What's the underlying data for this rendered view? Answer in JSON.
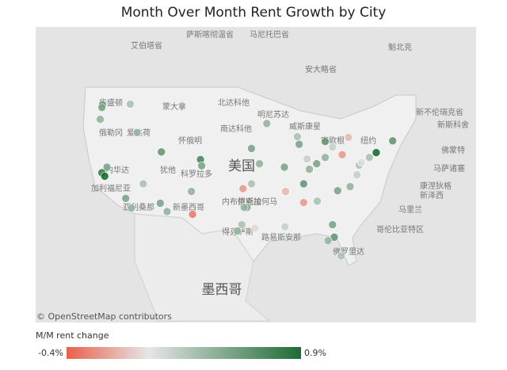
{
  "chart_data": {
    "type": "bubble-map",
    "title": "Month Over Month Rent Growth by City",
    "attribution": "© OpenStreetMap contributors",
    "legend_title": "M/M rent change",
    "colorlim": [
      {
        "value": -0.4,
        "label": "-0.4%"
      },
      {
        "value": 0.9,
        "label": "0.9%"
      }
    ],
    "colors": [
      "#e8604b",
      "#e6e6e6",
      "#1e6b35"
    ],
    "places": [
      "艾伯塔省",
      "萨斯喀彻温省",
      "马尼托巴省",
      "安大略省",
      "魁北克",
      "新不伦瑞克省",
      "新斯科舍",
      "华盛顿",
      "蒙大拿",
      "北达科他",
      "明尼苏达",
      "俄勒冈",
      "爱达荷",
      "怀俄明",
      "南达科他",
      "威斯康星",
      "密歇根",
      "纽约",
      "内华达",
      "犹他",
      "科罗拉多",
      "内布拉斯加",
      "美国",
      "加利福尼亚",
      "亚利桑那",
      "新墨西哥",
      "俄克拉何马",
      "得克萨斯",
      "路易斯安那",
      "佛罗里达",
      "佛蒙特",
      "马萨诸塞",
      "康涅狄格",
      "新泽西",
      "马里兰",
      "哥伦比亚特区",
      "墨西哥"
    ],
    "points": [
      {
        "lon": -122.3,
        "lat": 47.6,
        "value": 0.6
      },
      {
        "lon": -122.4,
        "lat": 47.2,
        "value": 0.5
      },
      {
        "lon": -122.7,
        "lat": 45.5,
        "value": 0.4
      },
      {
        "lon": -117.4,
        "lat": 47.7,
        "value": 0.3
      },
      {
        "lon": -116.2,
        "lat": 43.6,
        "value": 0.4
      },
      {
        "lon": -121.5,
        "lat": 38.6,
        "value": 0.5
      },
      {
        "lon": -122.4,
        "lat": 37.8,
        "value": 0.8
      },
      {
        "lon": -121.9,
        "lat": 37.3,
        "value": 0.9
      },
      {
        "lon": -118.2,
        "lat": 34.1,
        "value": 0.5
      },
      {
        "lon": -117.2,
        "lat": 32.7,
        "value": 0.4
      },
      {
        "lon": -115.1,
        "lat": 36.2,
        "value": 0.3
      },
      {
        "lon": -112.1,
        "lat": 33.4,
        "value": 0.5
      },
      {
        "lon": -110.9,
        "lat": 32.2,
        "value": 0.4
      },
      {
        "lon": -111.9,
        "lat": 40.8,
        "value": 0.6
      },
      {
        "lon": -105.0,
        "lat": 39.7,
        "value": 0.7
      },
      {
        "lon": -104.8,
        "lat": 38.8,
        "value": 0.5
      },
      {
        "lon": -106.6,
        "lat": 35.1,
        "value": 0.4
      },
      {
        "lon": -106.4,
        "lat": 31.8,
        "value": -0.3
      },
      {
        "lon": -96.8,
        "lat": 32.8,
        "value": 0.5
      },
      {
        "lon": -97.3,
        "lat": 32.8,
        "value": 0.4
      },
      {
        "lon": -97.7,
        "lat": 30.3,
        "value": 0.3
      },
      {
        "lon": -98.5,
        "lat": 29.4,
        "value": 0.4
      },
      {
        "lon": -95.4,
        "lat": 29.8,
        "value": 0.0
      },
      {
        "lon": -97.5,
        "lat": 35.5,
        "value": -0.2
      },
      {
        "lon": -96.0,
        "lat": 36.2,
        "value": 0.3
      },
      {
        "lon": -94.6,
        "lat": 39.1,
        "value": 0.4
      },
      {
        "lon": -96.0,
        "lat": 41.3,
        "value": 0.5
      },
      {
        "lon": -93.3,
        "lat": 44.9,
        "value": 0.4
      },
      {
        "lon": -87.6,
        "lat": 41.9,
        "value": 0.5
      },
      {
        "lon": -87.9,
        "lat": 43.0,
        "value": 0.3
      },
      {
        "lon": -83.0,
        "lat": 42.3,
        "value": 0.6
      },
      {
        "lon": -83.0,
        "lat": 40.0,
        "value": 0.4
      },
      {
        "lon": -86.2,
        "lat": 39.8,
        "value": 0.2
      },
      {
        "lon": -90.2,
        "lat": 38.6,
        "value": 0.5
      },
      {
        "lon": -86.8,
        "lat": 36.2,
        "value": 0.6
      },
      {
        "lon": -90.0,
        "lat": 35.1,
        "value": -0.1
      },
      {
        "lon": -84.4,
        "lat": 33.7,
        "value": 0.3
      },
      {
        "lon": -80.8,
        "lat": 35.2,
        "value": 0.5
      },
      {
        "lon": -78.6,
        "lat": 35.8,
        "value": 0.4
      },
      {
        "lon": -77.4,
        "lat": 37.5,
        "value": 0.2
      },
      {
        "lon": -77.0,
        "lat": 38.9,
        "value": 0.3
      },
      {
        "lon": -76.6,
        "lat": 39.3,
        "value": 0.1
      },
      {
        "lon": -75.2,
        "lat": 40.0,
        "value": 0.3
      },
      {
        "lon": -74.0,
        "lat": 40.7,
        "value": 0.9
      },
      {
        "lon": -71.1,
        "lat": 42.4,
        "value": 0.6
      },
      {
        "lon": -80.0,
        "lat": 40.4,
        "value": -0.2
      },
      {
        "lon": -81.7,
        "lat": 41.5,
        "value": 0.2
      },
      {
        "lon": -78.9,
        "lat": 42.9,
        "value": -0.1
      },
      {
        "lon": -90.1,
        "lat": 30.0,
        "value": 0.2
      },
      {
        "lon": -81.7,
        "lat": 30.3,
        "value": 0.5
      },
      {
        "lon": -81.4,
        "lat": 28.5,
        "value": 0.6
      },
      {
        "lon": -82.5,
        "lat": 28.0,
        "value": 0.4
      },
      {
        "lon": -80.2,
        "lat": 25.8,
        "value": 0.3
      },
      {
        "lon": -86.8,
        "lat": 33.5,
        "value": -0.2
      },
      {
        "lon": -85.8,
        "lat": 38.3,
        "value": 0.4
      },
      {
        "lon": -84.5,
        "lat": 39.1,
        "value": 0.5
      }
    ]
  }
}
